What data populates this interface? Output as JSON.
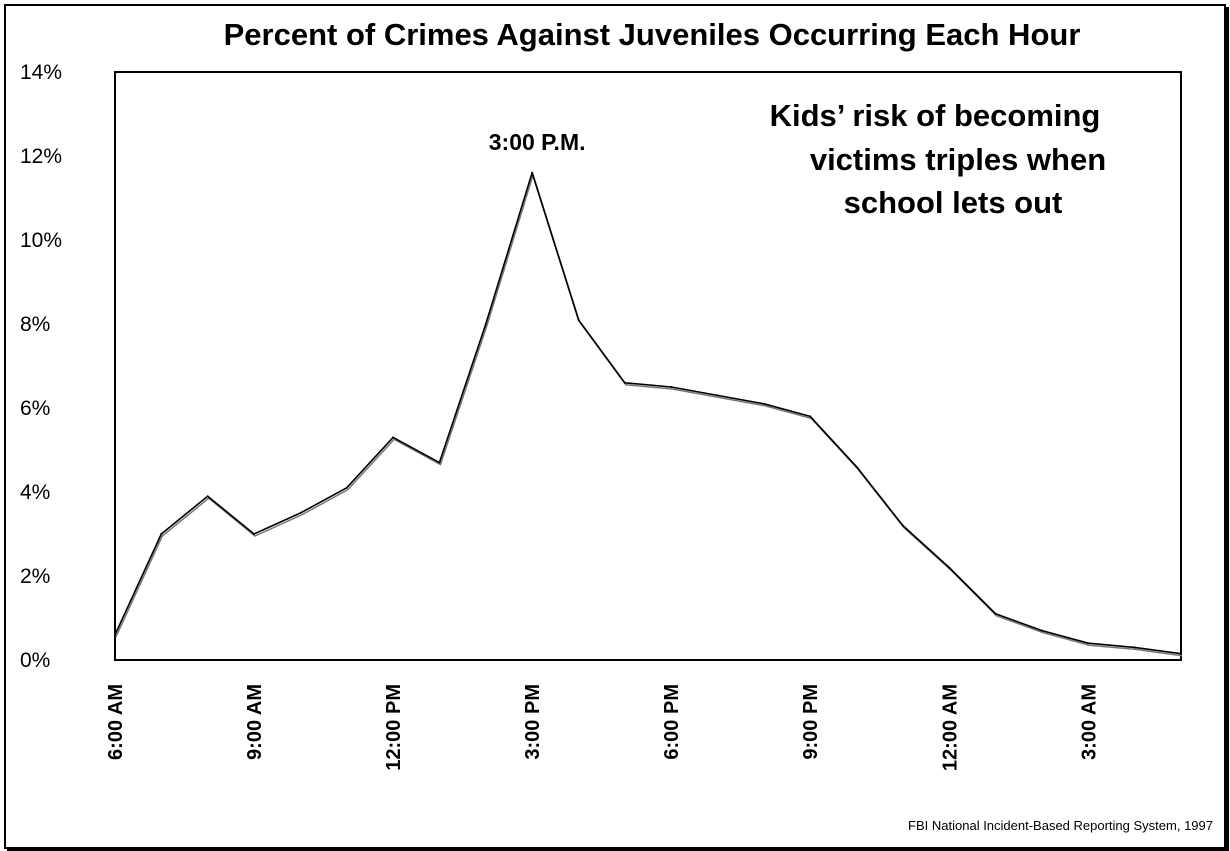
{
  "chart_data": {
    "type": "line",
    "title": "Percent of Crimes Against Juveniles Occurring Each Hour",
    "xlabel": "",
    "ylabel": "",
    "ylim": [
      0,
      14
    ],
    "y_ticks": [
      "0%",
      "2%",
      "4%",
      "6%",
      "8%",
      "10%",
      "12%",
      "14%"
    ],
    "x_tick_labels": [
      "6:00 AM",
      "9:00 AM",
      "12:00 PM",
      "3:00 PM",
      "6:00 PM",
      "9:00 PM",
      "12:00 AM",
      "3:00 AM"
    ],
    "x_tick_hour_index": [
      0,
      3,
      6,
      9,
      12,
      15,
      18,
      21
    ],
    "categories": [
      "6:00 AM",
      "7:00 AM",
      "8:00 AM",
      "9:00 AM",
      "10:00 AM",
      "11:00 AM",
      "12:00 PM",
      "1:00 PM",
      "2:00 PM",
      "3:00 PM",
      "4:00 PM",
      "5:00 PM",
      "6:00 PM",
      "7:00 PM",
      "8:00 PM",
      "9:00 PM",
      "10:00 PM",
      "11:00 PM",
      "12:00 AM",
      "1:00 AM",
      "2:00 AM",
      "3:00 AM",
      "4:00 AM",
      "5:00 AM"
    ],
    "values": [
      0.6,
      3.0,
      3.9,
      3.0,
      3.5,
      4.1,
      5.3,
      4.7,
      8.0,
      11.6,
      8.1,
      6.6,
      6.5,
      6.3,
      6.1,
      5.8,
      4.6,
      3.2,
      2.2,
      1.1,
      0.7,
      0.4,
      0.3,
      0.15
    ],
    "grid": false,
    "annotations": {
      "peak_label": "3:00 P.M.",
      "peak_index": 9,
      "callout_lines": [
        "Kids’ risk of becoming",
        "victims triples when",
        "school lets out"
      ]
    },
    "source": "FBI National Incident-Based Reporting System, 1997"
  }
}
